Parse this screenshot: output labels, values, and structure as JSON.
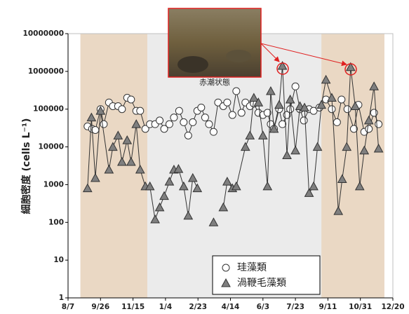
{
  "chart_data": {
    "type": "line",
    "log_y": true,
    "y_label": "細胞密度 (cells L⁻¹)",
    "annotation": "赤潮状態",
    "legend": "bottom-right",
    "xlim": [
      0,
      500
    ],
    "xticks": [
      {
        "value": 0,
        "label": "8/7"
      },
      {
        "value": 50,
        "label": "9/26"
      },
      {
        "value": 100,
        "label": "11/15"
      },
      {
        "value": 150,
        "label": "1/4"
      },
      {
        "value": 200,
        "label": "2/23"
      },
      {
        "value": 250,
        "label": "4/14"
      },
      {
        "value": 300,
        "label": "6/3"
      },
      {
        "value": 350,
        "label": "7/23"
      },
      {
        "value": 400,
        "label": "9/11"
      },
      {
        "value": 450,
        "label": "10/31"
      },
      {
        "value": 500,
        "label": "12/20"
      }
    ],
    "ylim": [
      1,
      10000000
    ],
    "yticks": [
      1,
      10,
      100,
      1000,
      10000,
      100000,
      1000000,
      10000000
    ],
    "periods": [
      {
        "start": 19,
        "end": 487,
        "color": "#ebebeb"
      },
      {
        "start": 19,
        "end": 122,
        "color": "#ead8c4"
      },
      {
        "start": 390,
        "end": 487,
        "color": "#ead8c4"
      }
    ],
    "series": [
      {
        "name": "珪藻類",
        "marker": "circle",
        "color": "#ffffff",
        "x": [
          30,
          37,
          42,
          50,
          55,
          63,
          69,
          77,
          83,
          91,
          97,
          105,
          111,
          119,
          126,
          134,
          141,
          148,
          156,
          163,
          171,
          178,
          185,
          192,
          199,
          205,
          211,
          217,
          224,
          231,
          239,
          245,
          253,
          259,
          267,
          273,
          280,
          286,
          293,
          300,
          307,
          312,
          317,
          325,
          330,
          337,
          342,
          350,
          357,
          363,
          371,
          378,
          387,
          397,
          406,
          414,
          421,
          430,
          440,
          447,
          456,
          463,
          471,
          478
        ],
        "values": [
          35000,
          30000,
          28000,
          100000,
          40000,
          150000,
          120000,
          120000,
          100000,
          200000,
          180000,
          90000,
          90000,
          30000,
          40000,
          40000,
          50000,
          30000,
          40000,
          60000,
          90000,
          45000,
          20000,
          45000,
          90000,
          110000,
          60000,
          40000,
          25000,
          150000,
          120000,
          150000,
          70000,
          300000,
          80000,
          150000,
          120000,
          140000,
          80000,
          70000,
          80000,
          40000,
          30000,
          100000,
          40000,
          70000,
          100000,
          400000,
          100000,
          50000,
          100000,
          90000,
          110000,
          180000,
          100000,
          45000,
          180000,
          100000,
          30000,
          130000,
          25000,
          30000,
          80000,
          40000
        ]
      },
      {
        "name": "渦鞭毛藻類",
        "marker": "triangle",
        "color": "#7f7f7f",
        "x": [
          30,
          36,
          42,
          50,
          63,
          69,
          77,
          83,
          91,
          97,
          105,
          111,
          119,
          126,
          134,
          141,
          148,
          156,
          163,
          170,
          178,
          185,
          192,
          199,
          212,
          224,
          232,
          239,
          245,
          253,
          259,
          273,
          280,
          286,
          293,
          300,
          307,
          312,
          317,
          325,
          330,
          337,
          342,
          350,
          357,
          364,
          371,
          378,
          384,
          390,
          397,
          406,
          416,
          422,
          429,
          435,
          442,
          449,
          456,
          463,
          471,
          478
        ],
        "values": [
          800,
          60000,
          1500,
          90000,
          2500,
          10000,
          20000,
          4000,
          15000,
          4000,
          40000,
          2500,
          900,
          900,
          120,
          250,
          500,
          1200,
          2500,
          2600,
          900,
          150,
          1500,
          800,
          null,
          100,
          null,
          250,
          1200,
          800,
          900,
          10000,
          20000,
          200000,
          150000,
          20000,
          900,
          300000,
          30000,
          130000,
          1400000,
          6000,
          180000,
          8000,
          120000,
          110000,
          600,
          900,
          10000,
          130000,
          600000,
          200000,
          200,
          1400,
          10000,
          1300000,
          120000,
          900,
          8000,
          50000,
          400000,
          9000
        ]
      }
    ]
  }
}
